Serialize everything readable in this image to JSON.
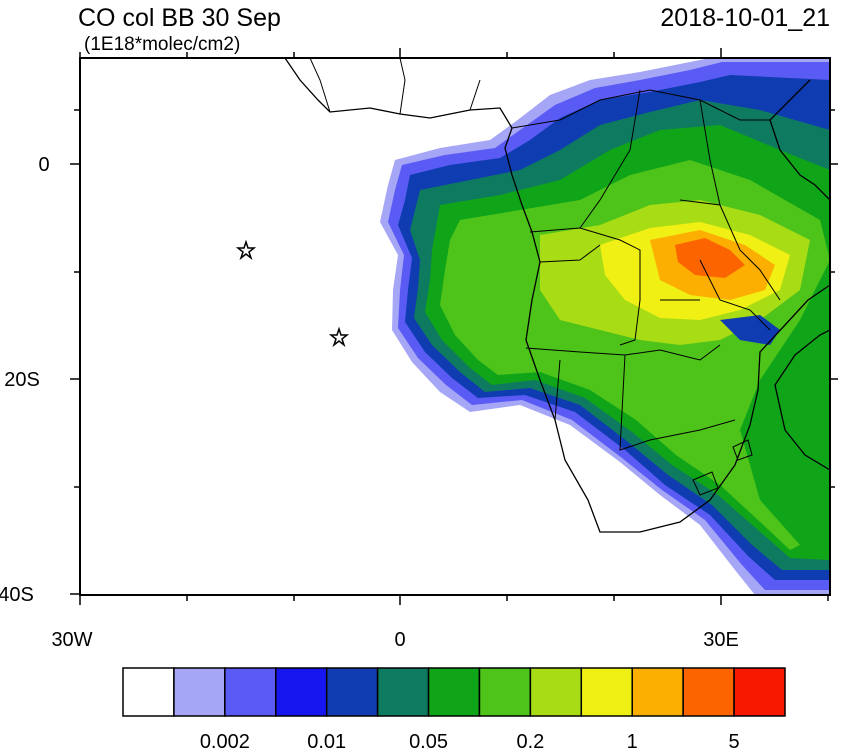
{
  "title": "CO col BB 30 Sep",
  "units": "(1E18*molec/cm2)",
  "date": "2018-10-01_21",
  "lat_labels": [
    "0",
    "20S",
    "40S"
  ],
  "lon_labels": [
    "30W",
    "0",
    "30E"
  ],
  "colorbar": {
    "colors": [
      "#ffffff",
      "#a6a6f7",
      "#5a5af5",
      "#1616f0",
      "#0f3cb0",
      "#0e7a60",
      "#10a518",
      "#4ec31a",
      "#a8dc14",
      "#f0f014",
      "#fcaf00",
      "#fc6400",
      "#f81800"
    ],
    "labels": [
      "0.002",
      "0.01",
      "0.05",
      "0.2",
      "1",
      "5"
    ]
  }
}
